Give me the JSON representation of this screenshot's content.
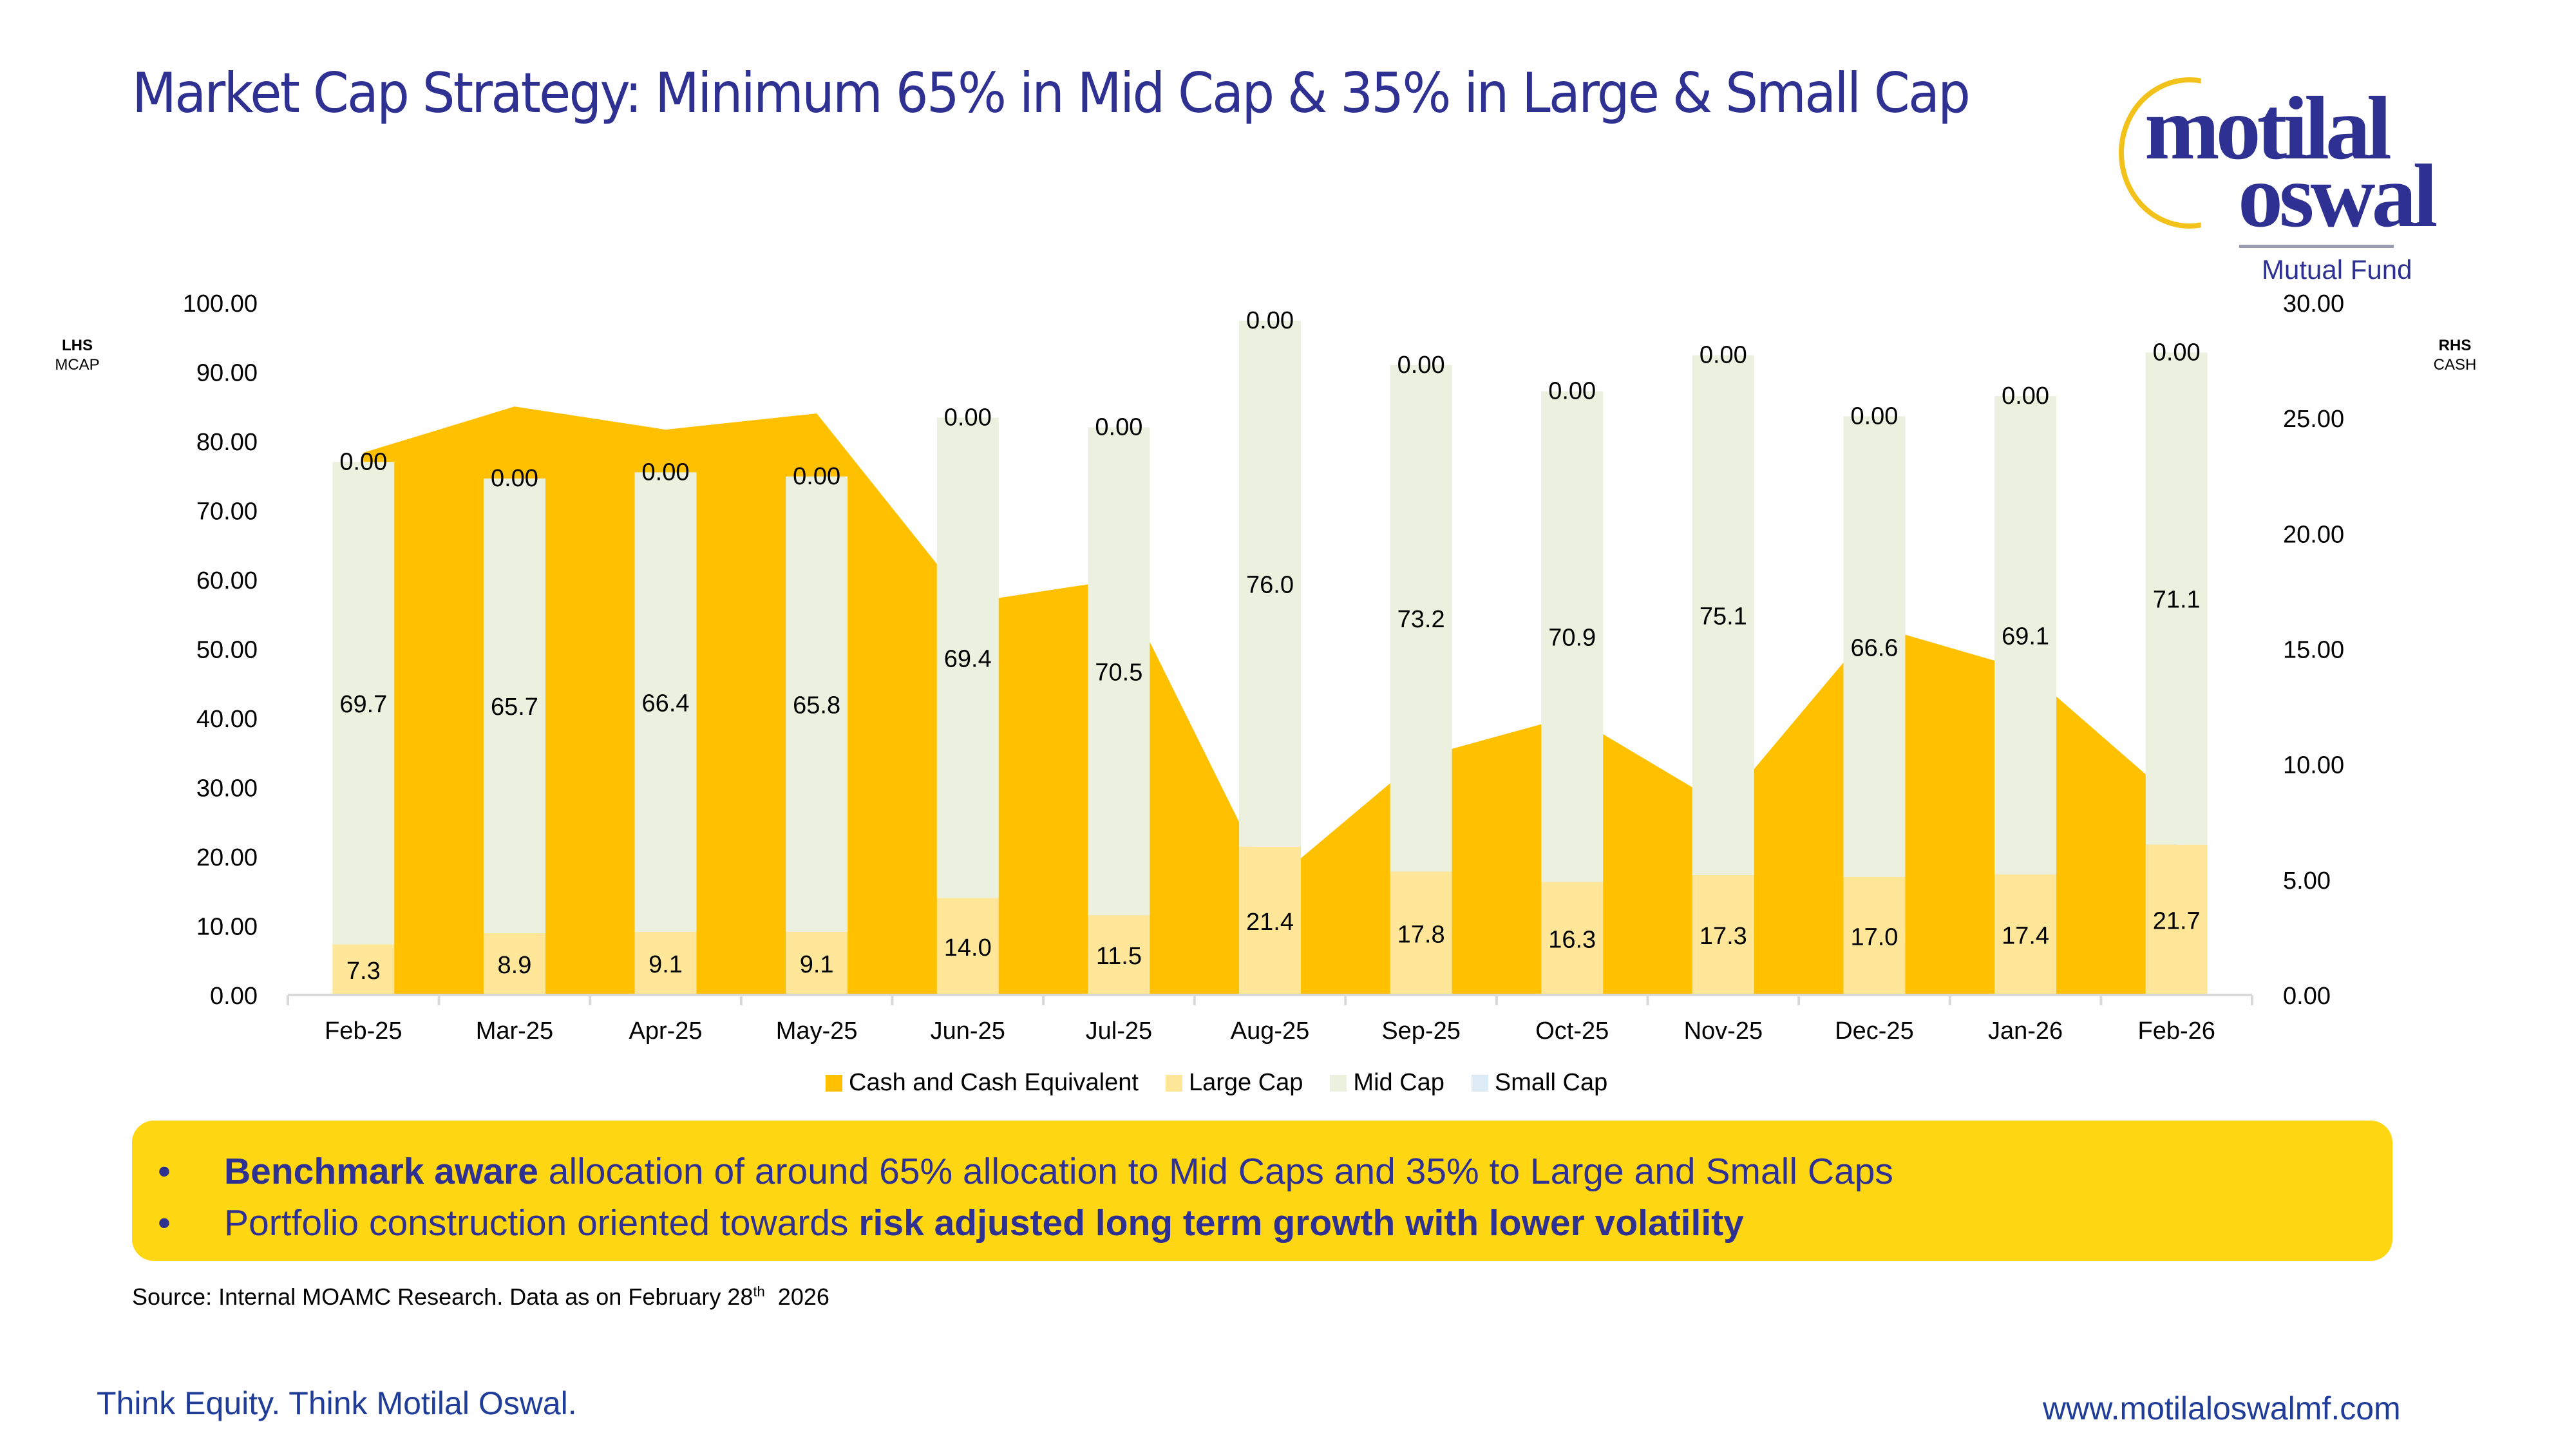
{
  "page": {
    "title": "Market Cap Strategy: Minimum 65% in Mid Cap & 35% in Large & Small Cap",
    "logo": {
      "line1": "motilal",
      "line2": "oswal",
      "line3": "Mutual Fund"
    },
    "lhs_note": {
      "label": "LHS",
      "sub": "MCAP"
    },
    "rhs_note": {
      "label": "RHS",
      "sub": "CASH"
    },
    "callout": {
      "bullet_glyph": "•",
      "items": [
        {
          "bold_prefix": "Benchmark aware",
          "text": " allocation of around 65% allocation to Mid Caps and 35% to Large and Small Caps",
          "bold_suffix": ""
        },
        {
          "bold_prefix": "",
          "text": "Portfolio construction oriented towards ",
          "bold_suffix": "risk adjusted long term growth with lower volatility"
        }
      ]
    },
    "source": {
      "text": "Source: Internal MOAMC Research. Data as on February 28",
      "sup": "th",
      "tail": "  2026"
    },
    "footer": {
      "tagline": "Think Equity. Think Motilal Oswal.",
      "website": "www.motilaloswalmf.com"
    },
    "colors": {
      "title": "#2E3192",
      "cash": "#FFC000",
      "large_cap": "#FFE699",
      "mid_cap": "#EBF1DE",
      "small_cap": "#DDEBF7",
      "callout": "#FFD612",
      "footer": "#1F3C99"
    }
  },
  "chart_data": {
    "type": "bar",
    "subtype": "stacked bar (LHS) + area (RHS)",
    "title": "Market Cap Strategy: Minimum 65% in Mid Cap & 35% in Large & Small Cap",
    "categories": [
      "Feb-25",
      "Mar-25",
      "Apr-25",
      "May-25",
      "Jun-25",
      "Jul-25",
      "Aug-25",
      "Sep-25",
      "Oct-25",
      "Nov-25",
      "Dec-25",
      "Jan-26",
      "Feb-26"
    ],
    "series": [
      {
        "name": "Cash and Cash Equivalent",
        "type": "area",
        "axis": "right",
        "values": [
          23.5,
          25.5,
          24.5,
          25.2,
          17.0,
          18.0,
          4.8,
          10.3,
          12.1,
          8.2,
          16.0,
          14.1,
          8.4
        ]
      },
      {
        "name": "Large Cap",
        "type": "bar",
        "axis": "left",
        "values": [
          7.3,
          8.9,
          9.1,
          9.1,
          14.0,
          11.5,
          21.4,
          17.8,
          16.3,
          17.3,
          17.0,
          17.4,
          21.7
        ],
        "labels": [
          "7.3",
          "8.9",
          "9.1",
          "9.1",
          "14.0",
          "11.5",
          "21.4",
          "17.8",
          "16.3",
          "17.3",
          "17.0",
          "17.4",
          "21.7"
        ]
      },
      {
        "name": "Mid Cap",
        "type": "bar",
        "axis": "left",
        "values": [
          69.7,
          65.7,
          66.4,
          65.8,
          69.4,
          70.5,
          76.0,
          73.2,
          70.9,
          75.1,
          66.6,
          69.1,
          71.1
        ],
        "labels": [
          "69.7",
          "65.7",
          "66.4",
          "65.8",
          "69.4",
          "70.5",
          "76.0",
          "73.2",
          "70.9",
          "75.1",
          "66.6",
          "69.1",
          "71.1"
        ]
      },
      {
        "name": "Small Cap",
        "type": "bar",
        "axis": "left",
        "values": [
          0,
          0,
          0,
          0,
          0,
          0,
          0,
          0,
          0,
          0,
          0,
          0,
          0
        ],
        "labels": [
          "0.00",
          "0.00",
          "0.00",
          "0.00",
          "0.00",
          "0.00",
          "0.00",
          "0.00",
          "0.00",
          "0.00",
          "0.00",
          "0.00",
          "0.00"
        ]
      }
    ],
    "y_left": {
      "label": "LHS MCAP",
      "range": [
        0,
        100
      ],
      "ticks": [
        "0.00",
        "10.00",
        "20.00",
        "30.00",
        "40.00",
        "50.00",
        "60.00",
        "70.00",
        "80.00",
        "90.00",
        "100.00"
      ]
    },
    "y_right": {
      "label": "RHS CASH",
      "range": [
        0,
        30
      ],
      "ticks": [
        "0.00",
        "5.00",
        "10.00",
        "15.00",
        "20.00",
        "25.00",
        "30.00"
      ]
    },
    "legend": [
      "Cash and Cash Equivalent",
      "Large Cap",
      "Mid Cap",
      "Small Cap"
    ],
    "legend_position": "bottom",
    "grid": false
  }
}
